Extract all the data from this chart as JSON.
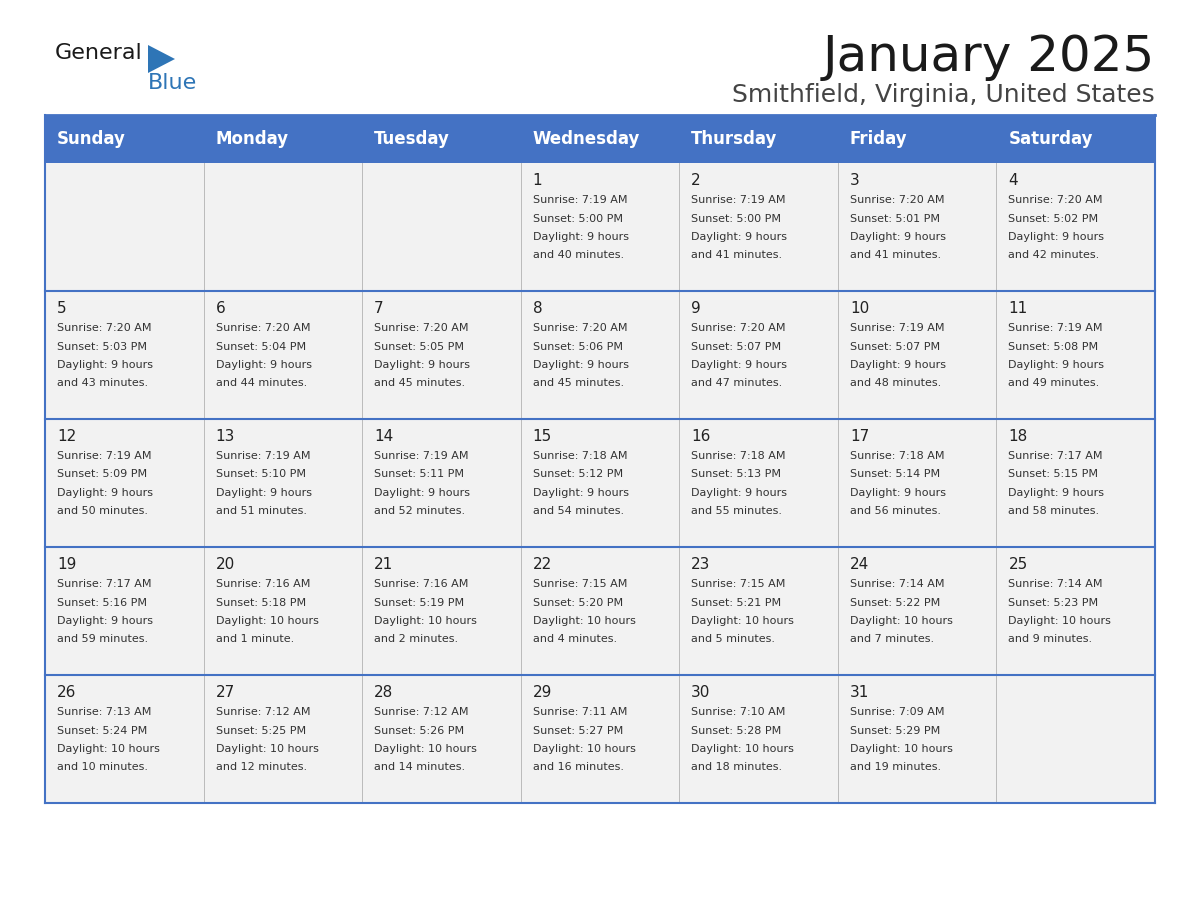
{
  "title": "January 2025",
  "subtitle": "Smithfield, Virginia, United States",
  "header_color": "#4472C4",
  "header_text_color": "#FFFFFF",
  "cell_bg_color": "#F2F2F2",
  "separator_color": "#4472C4",
  "text_color": "#333333",
  "day_names": [
    "Sunday",
    "Monday",
    "Tuesday",
    "Wednesday",
    "Thursday",
    "Friday",
    "Saturday"
  ],
  "title_fontsize": 36,
  "subtitle_fontsize": 18,
  "header_fontsize": 12,
  "day_num_fontsize": 11,
  "cell_fontsize": 8.0,
  "logo_fontsize": 16,
  "calendar": [
    [
      {
        "day": "",
        "sunrise": "",
        "sunset": "",
        "daylight": ""
      },
      {
        "day": "",
        "sunrise": "",
        "sunset": "",
        "daylight": ""
      },
      {
        "day": "",
        "sunrise": "",
        "sunset": "",
        "daylight": ""
      },
      {
        "day": "1",
        "sunrise": "7:19 AM",
        "sunset": "5:00 PM",
        "daylight": "9 hours\nand 40 minutes."
      },
      {
        "day": "2",
        "sunrise": "7:19 AM",
        "sunset": "5:00 PM",
        "daylight": "9 hours\nand 41 minutes."
      },
      {
        "day": "3",
        "sunrise": "7:20 AM",
        "sunset": "5:01 PM",
        "daylight": "9 hours\nand 41 minutes."
      },
      {
        "day": "4",
        "sunrise": "7:20 AM",
        "sunset": "5:02 PM",
        "daylight": "9 hours\nand 42 minutes."
      }
    ],
    [
      {
        "day": "5",
        "sunrise": "7:20 AM",
        "sunset": "5:03 PM",
        "daylight": "9 hours\nand 43 minutes."
      },
      {
        "day": "6",
        "sunrise": "7:20 AM",
        "sunset": "5:04 PM",
        "daylight": "9 hours\nand 44 minutes."
      },
      {
        "day": "7",
        "sunrise": "7:20 AM",
        "sunset": "5:05 PM",
        "daylight": "9 hours\nand 45 minutes."
      },
      {
        "day": "8",
        "sunrise": "7:20 AM",
        "sunset": "5:06 PM",
        "daylight": "9 hours\nand 45 minutes."
      },
      {
        "day": "9",
        "sunrise": "7:20 AM",
        "sunset": "5:07 PM",
        "daylight": "9 hours\nand 47 minutes."
      },
      {
        "day": "10",
        "sunrise": "7:19 AM",
        "sunset": "5:07 PM",
        "daylight": "9 hours\nand 48 minutes."
      },
      {
        "day": "11",
        "sunrise": "7:19 AM",
        "sunset": "5:08 PM",
        "daylight": "9 hours\nand 49 minutes."
      }
    ],
    [
      {
        "day": "12",
        "sunrise": "7:19 AM",
        "sunset": "5:09 PM",
        "daylight": "9 hours\nand 50 minutes."
      },
      {
        "day": "13",
        "sunrise": "7:19 AM",
        "sunset": "5:10 PM",
        "daylight": "9 hours\nand 51 minutes."
      },
      {
        "day": "14",
        "sunrise": "7:19 AM",
        "sunset": "5:11 PM",
        "daylight": "9 hours\nand 52 minutes."
      },
      {
        "day": "15",
        "sunrise": "7:18 AM",
        "sunset": "5:12 PM",
        "daylight": "9 hours\nand 54 minutes."
      },
      {
        "day": "16",
        "sunrise": "7:18 AM",
        "sunset": "5:13 PM",
        "daylight": "9 hours\nand 55 minutes."
      },
      {
        "day": "17",
        "sunrise": "7:18 AM",
        "sunset": "5:14 PM",
        "daylight": "9 hours\nand 56 minutes."
      },
      {
        "day": "18",
        "sunrise": "7:17 AM",
        "sunset": "5:15 PM",
        "daylight": "9 hours\nand 58 minutes."
      }
    ],
    [
      {
        "day": "19",
        "sunrise": "7:17 AM",
        "sunset": "5:16 PM",
        "daylight": "9 hours\nand 59 minutes."
      },
      {
        "day": "20",
        "sunrise": "7:16 AM",
        "sunset": "5:18 PM",
        "daylight": "10 hours\nand 1 minute."
      },
      {
        "day": "21",
        "sunrise": "7:16 AM",
        "sunset": "5:19 PM",
        "daylight": "10 hours\nand 2 minutes."
      },
      {
        "day": "22",
        "sunrise": "7:15 AM",
        "sunset": "5:20 PM",
        "daylight": "10 hours\nand 4 minutes."
      },
      {
        "day": "23",
        "sunrise": "7:15 AM",
        "sunset": "5:21 PM",
        "daylight": "10 hours\nand 5 minutes."
      },
      {
        "day": "24",
        "sunrise": "7:14 AM",
        "sunset": "5:22 PM",
        "daylight": "10 hours\nand 7 minutes."
      },
      {
        "day": "25",
        "sunrise": "7:14 AM",
        "sunset": "5:23 PM",
        "daylight": "10 hours\nand 9 minutes."
      }
    ],
    [
      {
        "day": "26",
        "sunrise": "7:13 AM",
        "sunset": "5:24 PM",
        "daylight": "10 hours\nand 10 minutes."
      },
      {
        "day": "27",
        "sunrise": "7:12 AM",
        "sunset": "5:25 PM",
        "daylight": "10 hours\nand 12 minutes."
      },
      {
        "day": "28",
        "sunrise": "7:12 AM",
        "sunset": "5:26 PM",
        "daylight": "10 hours\nand 14 minutes."
      },
      {
        "day": "29",
        "sunrise": "7:11 AM",
        "sunset": "5:27 PM",
        "daylight": "10 hours\nand 16 minutes."
      },
      {
        "day": "30",
        "sunrise": "7:10 AM",
        "sunset": "5:28 PM",
        "daylight": "10 hours\nand 18 minutes."
      },
      {
        "day": "31",
        "sunrise": "7:09 AM",
        "sunset": "5:29 PM",
        "daylight": "10 hours\nand 19 minutes."
      },
      {
        "day": "",
        "sunrise": "",
        "sunset": "",
        "daylight": ""
      }
    ]
  ]
}
